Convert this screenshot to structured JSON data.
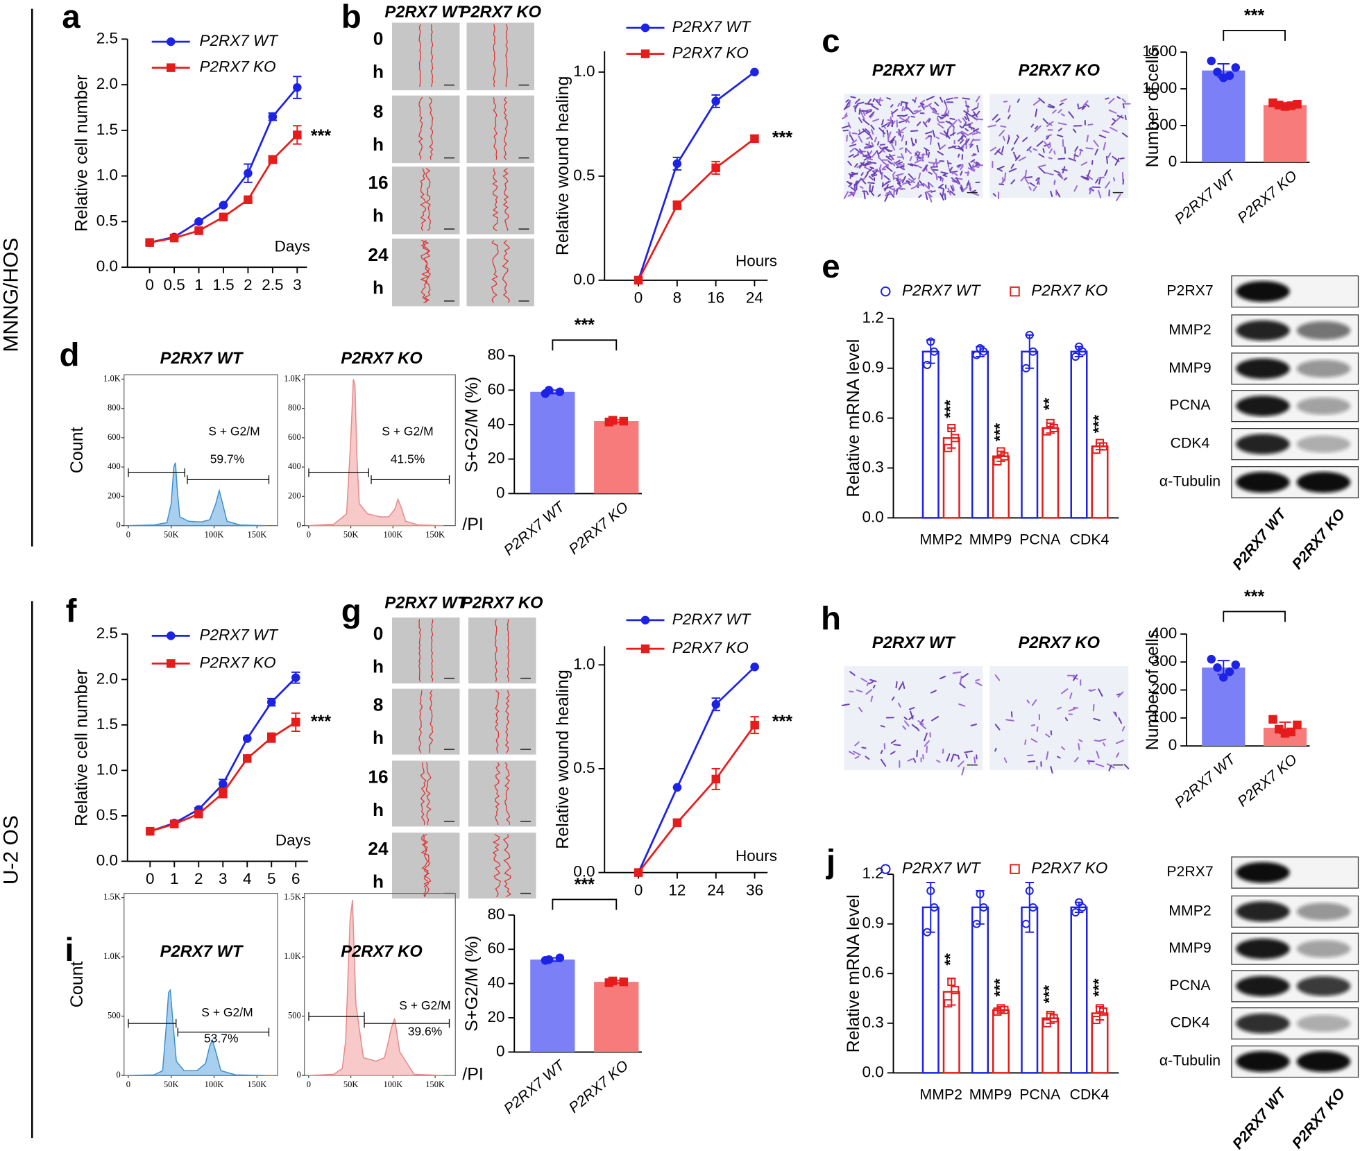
{
  "row_labels": [
    "MNNG/HOS",
    "U-2 OS"
  ],
  "panel_labels": [
    "a",
    "b",
    "c",
    "d",
    "e",
    "f",
    "g",
    "h",
    "i",
    "j"
  ],
  "micrographs": [
    {
      "columns": [
        "P2RX7 WT",
        "P2RX7 KO"
      ],
      "rows": [
        {
          "time": "0",
          "unit": "h"
        },
        {
          "time": "8",
          "unit": "h"
        },
        {
          "time": "16",
          "unit": "h"
        },
        {
          "time": "24",
          "unit": "h"
        }
      ]
    },
    {
      "columns": [
        "P2RX7 WT",
        "P2RX7 KO"
      ]
    },
    {
      "columns": [
        "P2RX7 WT",
        "P2RX7 KO"
      ],
      "rows": [
        {
          "time": "0",
          "unit": "h"
        },
        {
          "time": "8",
          "unit": "h"
        },
        {
          "time": "16",
          "unit": "h"
        },
        {
          "time": "24",
          "unit": "h"
        }
      ]
    },
    {
      "columns": [
        "P2RX7 WT",
        "P2RX7 KO"
      ]
    }
  ],
  "blots": [
    {
      "rows": [
        "P2RX7",
        "MMP2",
        "MMP9",
        "PCNA",
        "CDK4",
        "α-Tubulin"
      ],
      "columns": [
        "P2RX7 WT",
        "P2RX7 KO"
      ]
    },
    {
      "rows": [
        "P2RX7",
        "MMP2",
        "MMP9",
        "PCNA",
        "CDK4",
        "α-Tubulin"
      ],
      "columns": [
        "P2RX7 WT",
        "P2RX7 KO"
      ]
    }
  ],
  "chart_data": [
    {
      "type": "line",
      "ylabel": "Relative cell number",
      "xlabel": "Days",
      "annotation": "***",
      "x": [
        0,
        0.5,
        1,
        1.5,
        2,
        2.5,
        3
      ],
      "xlim": [
        -0.45,
        3.2
      ],
      "xticks": [
        0,
        0.5,
        1,
        1.5,
        2,
        2.5,
        3
      ],
      "ylim": [
        0,
        2.5
      ],
      "yticks": [
        {
          "value": 0,
          "label": "0.0"
        },
        0.5,
        {
          "value": 1,
          "label": "1.0"
        },
        1.5,
        {
          "value": 2,
          "label": "2.0"
        },
        2.5
      ],
      "series": [
        {
          "name": "P2RX7 WT",
          "color": "#1c22e6",
          "marker": "circle",
          "values": [
            0.27,
            0.33,
            0.5,
            0.68,
            1.03,
            1.65,
            1.97
          ],
          "errors": [
            0.01,
            0.01,
            0.01,
            0.01,
            0.1,
            0.04,
            0.12
          ]
        },
        {
          "name": "P2RX7 KO",
          "color": "#e61c1c",
          "marker": "square",
          "values": [
            0.27,
            0.32,
            0.4,
            0.55,
            0.74,
            1.18,
            1.45
          ],
          "errors": [
            0.01,
            0.01,
            0.01,
            0.01,
            0.02,
            0.04,
            0.1
          ]
        }
      ]
    },
    {
      "type": "line",
      "ylabel": "Relative wound healing",
      "xlabel": "Hours",
      "annotation": "***",
      "x": [
        0,
        8,
        16,
        24
      ],
      "xlim": [
        -7,
        26.7
      ],
      "xticks": [
        0,
        8,
        16,
        24
      ],
      "ylim": [
        0,
        1.1
      ],
      "yticks": [
        {
          "value": 0,
          "label": "0.0"
        },
        0.5,
        {
          "value": 1,
          "label": "1.0"
        }
      ],
      "series": [
        {
          "name": "P2RX7 WT",
          "color": "#1c22e6",
          "marker": "circle",
          "values": [
            0,
            0.56,
            0.86,
            1.0
          ],
          "errors": [
            0,
            0.03,
            0.03,
            0
          ]
        },
        {
          "name": "P2RX7 KO",
          "color": "#e61c1c",
          "marker": "square",
          "values": [
            0,
            0.36,
            0.54,
            0.68
          ],
          "errors": [
            0,
            0.02,
            0.03,
            0.015
          ]
        }
      ]
    },
    {
      "type": "bar",
      "ylabel": "Number of cells",
      "annotation": "***",
      "categories": [
        "P2RX7 WT",
        "P2RX7 KO"
      ],
      "values": [
        1250,
        780
      ],
      "errors": [
        90,
        25
      ],
      "points": [
        [
          1380,
          1290,
          1230,
          1180,
          1150
        ],
        [
          810,
          790,
          780,
          770,
          760
        ]
      ],
      "colors": [
        "#7b80f7",
        "#f77b7b"
      ],
      "point_colors": [
        "#1c22e6",
        "#e61c1c"
      ],
      "ylim": [
        0,
        1500
      ],
      "yticks": [
        0,
        500,
        1000,
        1500
      ]
    },
    {
      "type": "area",
      "title": "P2RX7 WT",
      "ylabel": "Count",
      "gate_label": "S + G2/M",
      "gate_value": "59.7%",
      "x": [
        0,
        30000,
        45000,
        50000,
        53000,
        55000,
        57000,
        60000,
        70000,
        85000,
        95000,
        102000,
        106000,
        110000,
        115000,
        130000,
        160000
      ],
      "xlim": [
        -5000,
        174000
      ],
      "xticks": [
        0,
        {
          "value": 50000,
          "label": "50K"
        },
        {
          "value": 100000,
          "label": "100K"
        },
        {
          "value": 150000,
          "label": "150K"
        }
      ],
      "ylim": [
        0,
        1030
      ],
      "yticks": [
        0,
        200,
        400,
        600,
        800,
        {
          "value": 1000,
          "label": "1.0K"
        }
      ],
      "series": [
        {
          "color": "#3c8fd0",
          "fill": "#a9cfee",
          "values": [
            0,
            5,
            20,
            150,
            400,
            430,
            250,
            60,
            30,
            25,
            40,
            150,
            240,
            150,
            30,
            5,
            0
          ]
        }
      ]
    },
    {
      "type": "area",
      "title": "P2RX7 KO",
      "xlabel": "/PI",
      "gate_label": "S + G2/M",
      "gate_value": "41.5%",
      "x": [
        0,
        30000,
        45000,
        50000,
        53000,
        55000,
        57000,
        60000,
        70000,
        85000,
        95000,
        102000,
        106000,
        110000,
        115000,
        130000,
        160000
      ],
      "xlim": [
        -5000,
        174000
      ],
      "xticks": [
        0,
        {
          "value": 50000,
          "label": "50K"
        },
        {
          "value": 100000,
          "label": "100K"
        },
        {
          "value": 150000,
          "label": "150K"
        }
      ],
      "ylim": [
        0,
        1030
      ],
      "yticks": [
        0,
        200,
        400,
        600,
        800,
        {
          "value": 1000,
          "label": "1.0K"
        }
      ],
      "series": [
        {
          "color": "#e68a8a",
          "fill": "#f7c9c9",
          "values": [
            0,
            10,
            80,
            600,
            1000,
            960,
            500,
            150,
            80,
            60,
            60,
            110,
            180,
            120,
            30,
            5,
            0
          ]
        }
      ]
    },
    {
      "type": "bar",
      "ylabel": "S+G2/M (%)",
      "annotation": "***",
      "categories": [
        "P2RX7 WT",
        "P2RX7 KO"
      ],
      "values": [
        59,
        42
      ],
      "errors": [
        1,
        0.7
      ],
      "points": [
        [
          58,
          59,
          60
        ],
        [
          41.5,
          42,
          42.5
        ]
      ],
      "colors": [
        "#7b80f7",
        "#f77b7b"
      ],
      "point_colors": [
        "#1c22e6",
        "#e61c1c"
      ],
      "ylim": [
        0,
        80
      ],
      "yticks": [
        0,
        20,
        40,
        60,
        80
      ]
    },
    {
      "type": "bar",
      "ylabel": "Relative mRNA level",
      "categories": [
        "MMP2",
        "MMP9",
        "PCNA",
        "CDK4"
      ],
      "annotations": [
        "***",
        "***",
        "**",
        "***"
      ],
      "ylim": [
        0,
        1.2
      ],
      "yticks": [
        {
          "value": 0,
          "label": "0.0"
        },
        0.3,
        0.6,
        0.9,
        1.2
      ],
      "series": [
        {
          "name": "P2RX7 WT",
          "color": "#1c22e6",
          "marker": "circle",
          "values": [
            1,
            1,
            1,
            1
          ],
          "errors": [
            0.07,
            0.03,
            0.1,
            0.03
          ],
          "points": [
            [
              0.92,
              1.0,
              1.06
            ],
            [
              0.98,
              1.0,
              1.02
            ],
            [
              0.9,
              1.0,
              1.1
            ],
            [
              0.97,
              1.0,
              1.03
            ]
          ]
        },
        {
          "name": "P2RX7 KO",
          "color": "#e61c1c",
          "marker": "square",
          "values": [
            0.48,
            0.37,
            0.54,
            0.43
          ],
          "errors": [
            0.06,
            0.03,
            0.03,
            0.02
          ],
          "points": [
            [
              0.42,
              0.48,
              0.54
            ],
            [
              0.34,
              0.37,
              0.4
            ],
            [
              0.52,
              0.54,
              0.57
            ],
            [
              0.41,
              0.43,
              0.45
            ]
          ]
        }
      ]
    },
    {
      "type": "line",
      "ylabel": "Relative cell number",
      "xlabel": "Days",
      "annotation": "***",
      "x": [
        0,
        1,
        2,
        3,
        4,
        5,
        6
      ],
      "xlim": [
        -0.93,
        6.5
      ],
      "xticks": [
        0,
        1,
        2,
        3,
        4,
        5,
        6
      ],
      "ylim": [
        0,
        2.5
      ],
      "yticks": [
        {
          "value": 0,
          "label": "0.0"
        },
        0.5,
        {
          "value": 1,
          "label": "1.0"
        },
        1.5,
        {
          "value": 2,
          "label": "2.0"
        },
        2.5
      ],
      "series": [
        {
          "name": "P2RX7 WT",
          "color": "#1c22e6",
          "marker": "circle",
          "values": [
            0.33,
            0.42,
            0.57,
            0.85,
            1.35,
            1.75,
            2.02
          ],
          "errors": [
            0.01,
            0.01,
            0.02,
            0.05,
            0.01,
            0.04,
            0.06
          ]
        },
        {
          "name": "P2RX7 KO",
          "color": "#e61c1c",
          "marker": "square",
          "values": [
            0.33,
            0.41,
            0.52,
            0.75,
            1.13,
            1.36,
            1.53
          ],
          "errors": [
            0.01,
            0.01,
            0.01,
            0.05,
            0.01,
            0.05,
            0.1
          ]
        }
      ]
    },
    {
      "type": "line",
      "ylabel": "Relative wound healing",
      "xlabel": "Hours",
      "annotation": "***",
      "x": [
        0,
        12,
        24,
        36
      ],
      "xlim": [
        -10.5,
        40
      ],
      "xticks": [
        0,
        12,
        24,
        36
      ],
      "ylim": [
        0,
        1.09
      ],
      "yticks": [
        {
          "value": 0,
          "label": "0.0"
        },
        0.5,
        {
          "value": 1,
          "label": "1.0"
        }
      ],
      "series": [
        {
          "name": "P2RX7 WT",
          "color": "#1c22e6",
          "marker": "circle",
          "values": [
            0,
            0.41,
            0.81,
            0.99
          ],
          "errors": [
            0,
            0,
            0.03,
            0
          ]
        },
        {
          "name": "P2RX7 KO",
          "color": "#e61c1c",
          "marker": "square",
          "values": [
            0,
            0.24,
            0.45,
            0.71
          ],
          "errors": [
            0,
            0.015,
            0.05,
            0.04
          ]
        }
      ]
    },
    {
      "type": "bar",
      "ylabel": "Number of cells",
      "annotation": "***",
      "categories": [
        "P2RX7 WT",
        "P2RX7 KO"
      ],
      "values": [
        280,
        65
      ],
      "errors": [
        25,
        20
      ],
      "points": [
        [
          310,
          290,
          280,
          265,
          245
        ],
        [
          95,
          75,
          60,
          50,
          45
        ]
      ],
      "colors": [
        "#7b80f7",
        "#f77b7b"
      ],
      "point_colors": [
        "#1c22e6",
        "#e61c1c"
      ],
      "ylim": [
        0,
        400
      ],
      "yticks": [
        0,
        100,
        200,
        300,
        400
      ]
    },
    {
      "type": "area",
      "title": "P2RX7 WT",
      "ylabel": "Count",
      "gate_label": "S + G2/M",
      "gate_value": "53.7%",
      "x": [
        0,
        30000,
        40000,
        44000,
        47000,
        49000,
        52000,
        56000,
        65000,
        80000,
        90000,
        95000,
        98000,
        102000,
        108000,
        125000,
        160000
      ],
      "xlim": [
        -5000,
        174000
      ],
      "xticks": [
        0,
        {
          "value": 50000,
          "label": "50K"
        },
        {
          "value": 100000,
          "label": "100K"
        },
        {
          "value": 150000,
          "label": "150K"
        }
      ],
      "ylim": [
        0,
        1535
      ],
      "yticks": [
        0,
        500,
        {
          "value": 1000,
          "label": "1.0K"
        },
        {
          "value": 1500,
          "label": "1.5K"
        }
      ],
      "series": [
        {
          "color": "#3c8fd0",
          "fill": "#a9cfee",
          "values": [
            0,
            5,
            40,
            400,
            700,
            720,
            450,
            120,
            40,
            40,
            100,
            250,
            300,
            200,
            40,
            5,
            0
          ]
        }
      ]
    },
    {
      "type": "area",
      "title": "P2RX7 KO",
      "xlabel": "/PI",
      "gate_label": "S + G2/M",
      "gate_value": "39.6%",
      "x": [
        0,
        30000,
        40000,
        44000,
        47000,
        49000,
        52000,
        56000,
        65000,
        80000,
        90000,
        95000,
        98000,
        102000,
        108000,
        125000,
        160000
      ],
      "xlim": [
        -5000,
        174000
      ],
      "xticks": [
        0,
        {
          "value": 50000,
          "label": "50K"
        },
        {
          "value": 100000,
          "label": "100K"
        },
        {
          "value": 150000,
          "label": "150K"
        }
      ],
      "ylim": [
        0,
        1535
      ],
      "yticks": [
        0,
        500,
        {
          "value": 1000,
          "label": "1.0K"
        },
        {
          "value": 1500,
          "label": "1.5K"
        }
      ],
      "series": [
        {
          "color": "#e68a8a",
          "fill": "#f7c9c9",
          "values": [
            0,
            10,
            60,
            300,
            900,
            1300,
            1480,
            600,
            150,
            120,
            150,
            300,
            400,
            480,
            200,
            10,
            0
          ]
        }
      ]
    },
    {
      "type": "bar",
      "ylabel": "S+G2/M (%)",
      "annotation": "***",
      "categories": [
        "P2RX7 WT",
        "P2RX7 KO"
      ],
      "values": [
        54,
        41
      ],
      "errors": [
        1,
        0.7
      ],
      "points": [
        [
          53.5,
          55,
          54
        ],
        [
          40.5,
          41,
          41.5
        ]
      ],
      "colors": [
        "#7b80f7",
        "#f77b7b"
      ],
      "point_colors": [
        "#1c22e6",
        "#e61c1c"
      ],
      "ylim": [
        0,
        80
      ],
      "yticks": [
        0,
        20,
        40,
        60,
        80
      ]
    },
    {
      "type": "bar",
      "ylabel": "Relative mRNA level",
      "categories": [
        "MMP2",
        "MMP9",
        "PCNA",
        "CDK4"
      ],
      "annotations": [
        "**",
        "***",
        "***",
        "***"
      ],
      "ylim": [
        0,
        1.2
      ],
      "yticks": [
        {
          "value": 0,
          "label": "0.0"
        },
        0.3,
        0.6,
        0.9,
        1.2
      ],
      "series": [
        {
          "name": "P2RX7 WT",
          "color": "#1c22e6",
          "marker": "circle",
          "values": [
            1,
            1,
            1,
            1
          ],
          "errors": [
            0.15,
            0.1,
            0.15,
            0.03
          ],
          "points": [
            [
              0.85,
              1.0,
              1.1
            ],
            [
              0.9,
              1.0,
              1.08
            ],
            [
              0.9,
              1.0,
              1.1
            ],
            [
              0.97,
              1.0,
              1.03
            ]
          ]
        },
        {
          "name": "P2RX7 KO",
          "color": "#e61c1c",
          "marker": "square",
          "values": [
            0.49,
            0.38,
            0.33,
            0.36
          ],
          "errors": [
            0.08,
            0.02,
            0.03,
            0.04
          ],
          "points": [
            [
              0.42,
              0.5,
              0.55
            ],
            [
              0.37,
              0.38,
              0.39
            ],
            [
              0.3,
              0.33,
              0.35
            ],
            [
              0.32,
              0.37,
              0.39
            ]
          ]
        }
      ]
    }
  ]
}
